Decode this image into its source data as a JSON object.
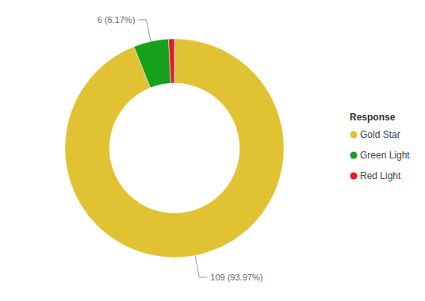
{
  "chart_data": {
    "type": "donut",
    "legend_title": "Response",
    "categories": [
      "Gold Star",
      "Green Light",
      "Red Light"
    ],
    "values": [
      109,
      6,
      1
    ],
    "value_labels": [
      "109 (93.97%)",
      "6 (5.17%)",
      null
    ],
    "colors": [
      "#e0c232",
      "#17a01c",
      "#e8192c"
    ],
    "legend": "right",
    "data_labels": true
  }
}
